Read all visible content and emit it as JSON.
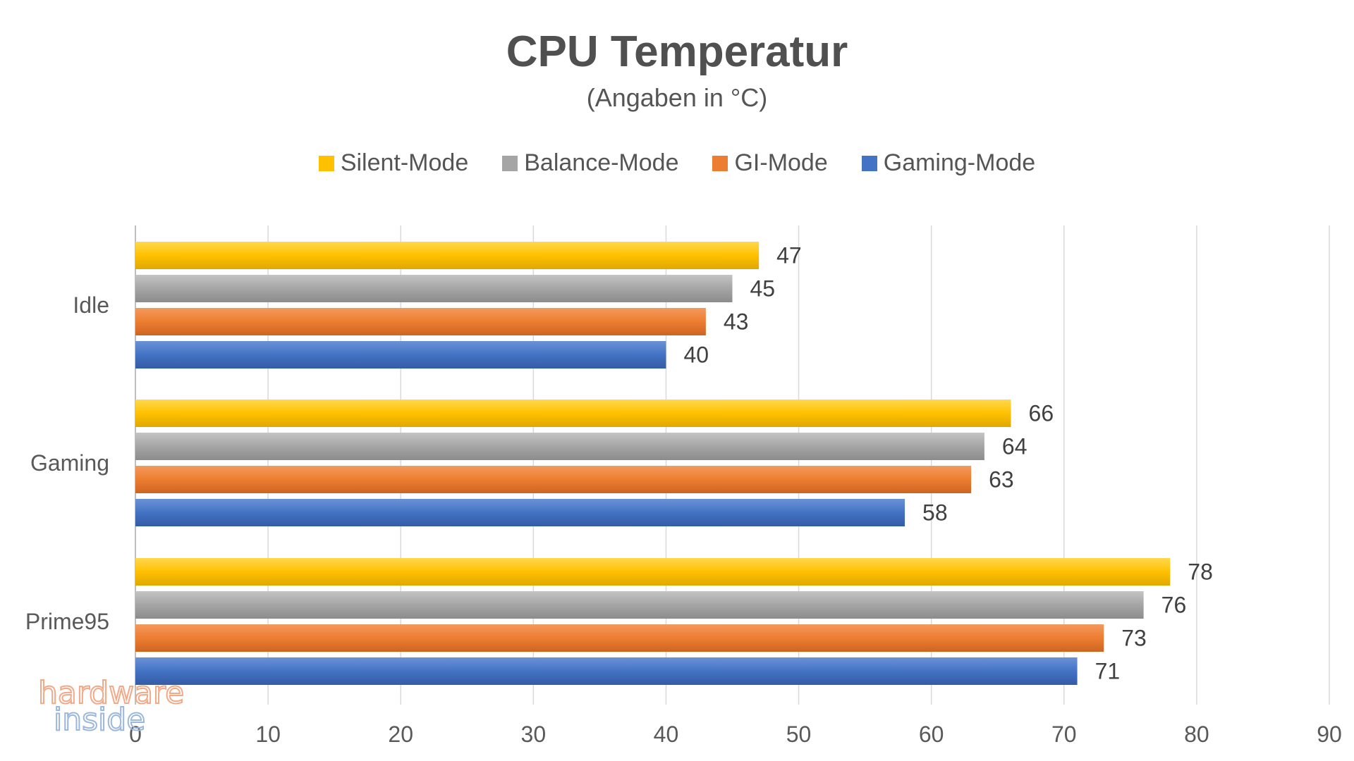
{
  "chart_data": {
    "type": "bar",
    "orientation": "horizontal",
    "title": "CPU Temperatur",
    "subtitle": "(Angaben in °C)",
    "categories": [
      "Idle",
      "Gaming",
      "Prime95"
    ],
    "series": [
      {
        "name": "Silent-Mode",
        "color": "#FFC000",
        "values": [
          47,
          66,
          78
        ]
      },
      {
        "name": "Balance-Mode",
        "color": "#A5A5A5",
        "values": [
          45,
          64,
          76
        ]
      },
      {
        "name": "GI-Mode",
        "color": "#ED7D31",
        "values": [
          43,
          63,
          73
        ]
      },
      {
        "name": "Gaming-Mode",
        "color": "#4472C4",
        "values": [
          40,
          58,
          71
        ]
      }
    ],
    "xlim": [
      0,
      90
    ],
    "xticks": [
      0,
      10,
      20,
      30,
      40,
      50,
      60,
      70,
      80,
      90
    ],
    "xlabel": "",
    "ylabel": "",
    "grid": true,
    "legend_position": "top",
    "data_labels": true
  },
  "watermark": {
    "line1": "hardware",
    "line2": "inside"
  }
}
